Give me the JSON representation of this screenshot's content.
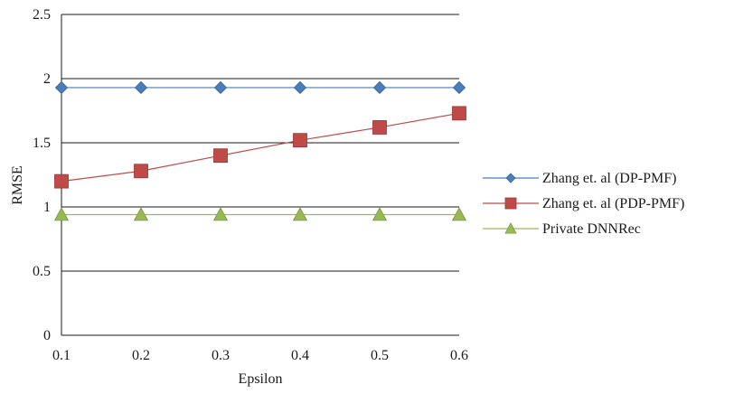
{
  "chart_data": {
    "type": "line",
    "xlabel": "Epsilon",
    "ylabel": "RMSE",
    "x": [
      0.1,
      0.2,
      0.3,
      0.4,
      0.5,
      0.6
    ],
    "x_tick_labels": [
      "0.1",
      "0.2",
      "0.3",
      "0.4",
      "0.5",
      "0.6"
    ],
    "ylim": [
      0,
      2.5
    ],
    "y_ticks": [
      0,
      0.5,
      1,
      1.5,
      2,
      2.5
    ],
    "y_tick_labels": [
      "0",
      "0.5",
      "1",
      "1.5",
      "2",
      "2.5"
    ],
    "grid": "horizontal",
    "legend_position": "right",
    "series": [
      {
        "name": "Zhang et. al (DP-PMF)",
        "marker": "diamond",
        "color": "#4a7ebb",
        "values": [
          1.93,
          1.93,
          1.93,
          1.93,
          1.93,
          1.93
        ]
      },
      {
        "name": "Zhang et. al (PDP-PMF)",
        "marker": "square",
        "color": "#be4b48",
        "values": [
          1.2,
          1.28,
          1.4,
          1.52,
          1.62,
          1.73
        ]
      },
      {
        "name": "Private DNNRec",
        "marker": "triangle",
        "color": "#98b954",
        "values": [
          0.94,
          0.94,
          0.94,
          0.94,
          0.94,
          0.94
        ]
      }
    ]
  }
}
